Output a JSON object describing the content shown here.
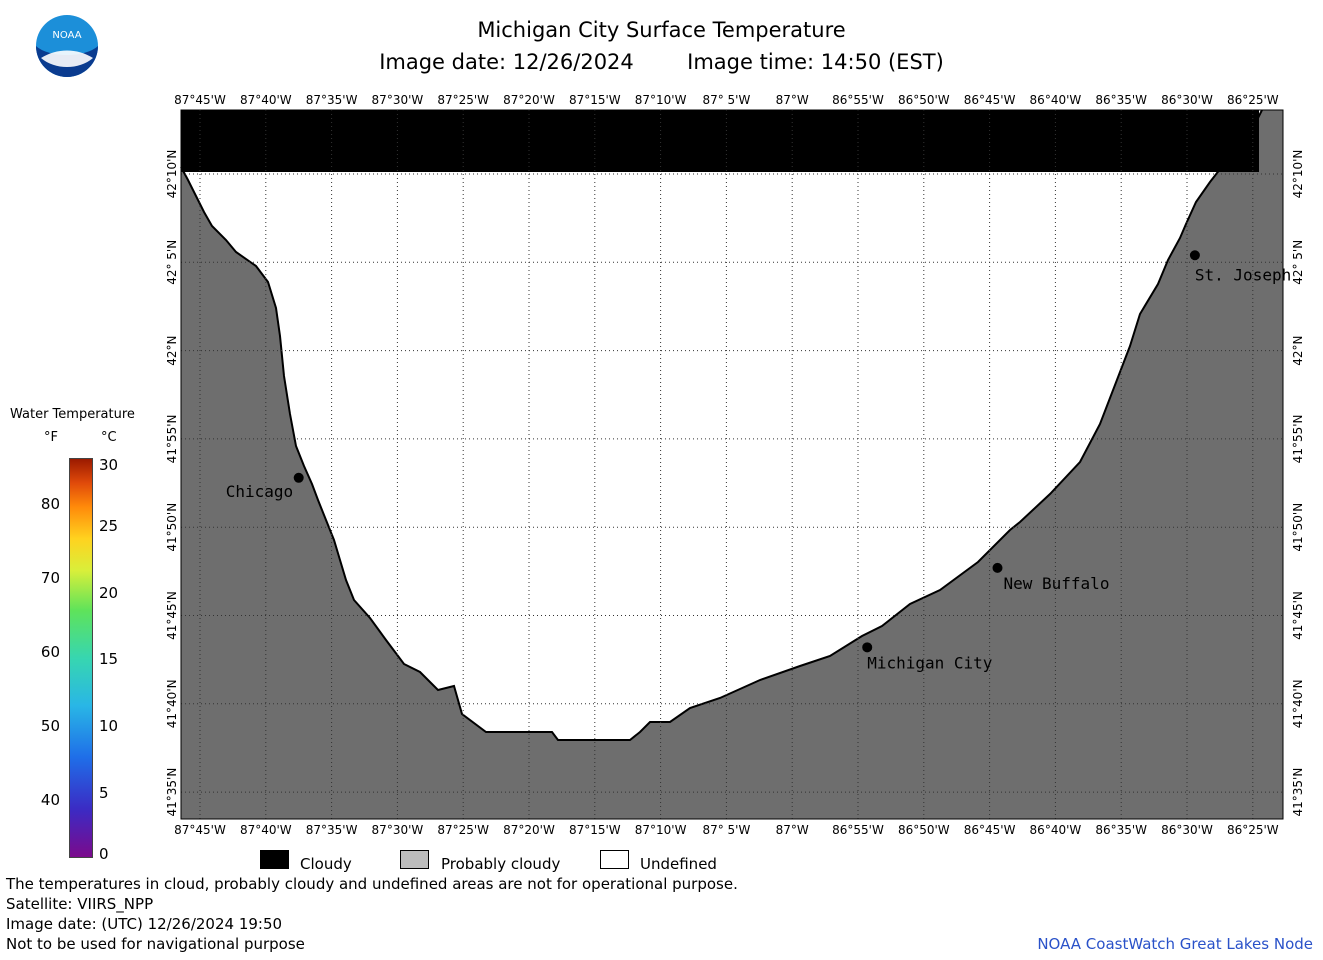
{
  "header": {
    "title": "Michigan City Surface Temperature",
    "image_date": "Image date: 12/26/2024",
    "image_time": "Image time: 14:50 (EST)",
    "logo_text": "NOAA"
  },
  "map": {
    "lon_labels": [
      "87°45'W",
      "87°40'W",
      "87°35'W",
      "87°30'W",
      "87°25'W",
      "87°20'W",
      "87°15'W",
      "87°10'W",
      "87° 5'W",
      "87°W",
      "86°55'W",
      "86°50'W",
      "86°45'W",
      "86°40'W",
      "86°35'W",
      "86°30'W",
      "86°25'W"
    ],
    "lat_labels": [
      "42°10'N",
      "42° 5'N",
      "42°N",
      "41°55'N",
      "41°50'N",
      "41°45'N",
      "41°40'N",
      "41°35'N"
    ],
    "cities": [
      {
        "name": "Chicago",
        "lon": -87.625,
        "lat": 41.88
      },
      {
        "name": "St. Joseph",
        "lon": -86.49,
        "lat": 42.09
      },
      {
        "name": "New Buffalo",
        "lon": -86.74,
        "lat": 41.795
      },
      {
        "name": "Michigan City",
        "lon": -86.905,
        "lat": 41.72
      }
    ],
    "colors": {
      "cloud": "#000000",
      "land": "#6e6e6e",
      "water_undefined": "#ffffff"
    }
  },
  "legend": {
    "title": "Water Temperature",
    "unit_f": "°F",
    "unit_c": "°C",
    "f_ticks": [
      "80",
      "70",
      "60",
      "50",
      "40"
    ],
    "c_ticks": [
      "30",
      "25",
      "20",
      "15",
      "10",
      "5",
      "0"
    ],
    "categories": [
      {
        "label": "Cloudy",
        "color": "#000000"
      },
      {
        "label": "Probably cloudy",
        "color": "#bcbcbc"
      },
      {
        "label": "Undefined",
        "color": "#ffffff"
      }
    ]
  },
  "footer": {
    "line1": "The temperatures in cloud, probably cloudy and undefined areas are not for operational purpose.",
    "line2": "Satellite: VIIRS_NPP",
    "line3": "Image date: (UTC) 12/26/2024  19:50",
    "line4": "Not to be used for navigational purpose",
    "credit": "NOAA CoastWatch Great Lakes Node"
  }
}
